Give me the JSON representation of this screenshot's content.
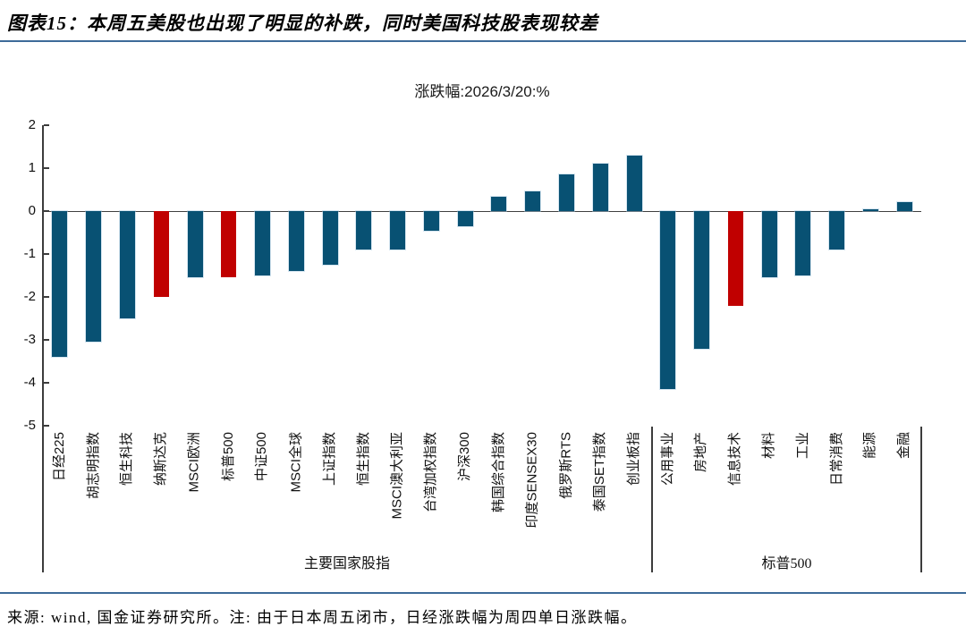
{
  "page": {
    "title": "图表15：本周五美股也出现了明显的补跌，同时美国科技股表现较差",
    "footer": "来源: wind, 国金证券研究所。注: 由于日本周五闭市，日经涨跌幅为周四单日涨跌幅。"
  },
  "chart_data": {
    "type": "bar",
    "title": "涨跌幅:2026/3/20:%",
    "xlabel": "",
    "ylabel": "",
    "ylim": [
      -5,
      2
    ],
    "yticks": [
      2,
      1,
      0,
      -1,
      -2,
      -3,
      -4,
      -5
    ],
    "grid": false,
    "legend": "none",
    "categories": [
      "日经225",
      "胡志明指数",
      "恒生科技",
      "纳斯达克",
      "MSCI欧洲",
      "标普500",
      "中证500",
      "MSCI全球",
      "上证指数",
      "恒生指数",
      "MSCI澳大利亚",
      "台湾加权指数",
      "沪深300",
      "韩国综合指数",
      "印度SENSEX30",
      "俄罗斯RTS",
      "泰国SET指数",
      "创业板指",
      "公用事业",
      "房地产",
      "信息技术",
      "材料",
      "工业",
      "日常消费",
      "能源",
      "金融"
    ],
    "values": [
      -3.4,
      -3.05,
      -2.5,
      -2.0,
      -1.55,
      -1.55,
      -1.5,
      -1.4,
      -1.25,
      -0.9,
      -0.9,
      -0.45,
      -0.35,
      0.33,
      0.45,
      0.85,
      1.1,
      1.3,
      -4.15,
      -3.2,
      -2.2,
      -1.55,
      -1.5,
      -0.9,
      0.05,
      0.2
    ],
    "highlighted_indexes": [
      3,
      5,
      20
    ],
    "colors": {
      "default": "#085173",
      "highlight": "#c00000"
    },
    "groups": [
      {
        "label": "主要国家股指",
        "count": 18
      },
      {
        "label": "标普500",
        "count": 8
      }
    ]
  }
}
